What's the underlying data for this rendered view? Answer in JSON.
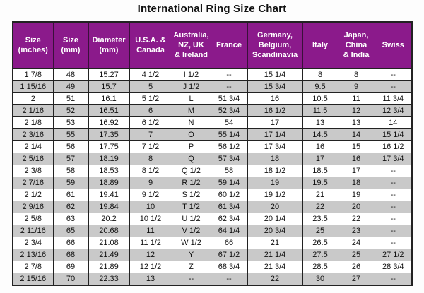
{
  "title": "International Ring Size Chart",
  "colors": {
    "header_bg": "#8B1A8B",
    "header_text": "#FFFFFF",
    "row_even_bg": "#FFFFFF",
    "row_odd_bg": "#C9C9C9",
    "border": "#222222",
    "cell_text": "#111111",
    "title_text": "#111111",
    "page_bg": "#FDFDFD"
  },
  "chart_data": {
    "type": "table",
    "title": "International Ring Size Chart",
    "columns": [
      "Size\n(inches)",
      "Size\n(mm)",
      "Diameter\n(mm)",
      "U.S.A. &\nCanada",
      "Australia,\nNZ, UK\n& Ireland",
      "France",
      "Germany,\nBelgium,\nScandinavia",
      "Italy",
      "Japan,\nChina\n& India",
      "Swiss"
    ],
    "rows": [
      [
        "1 7/8",
        "48",
        "15.27",
        "4 1/2",
        "I 1/2",
        "--",
        "15 1/4",
        "8",
        "8",
        "--"
      ],
      [
        "1 15/16",
        "49",
        "15.7",
        "5",
        "J 1/2",
        "--",
        "15 3/4",
        "9.5",
        "9",
        "--"
      ],
      [
        "2",
        "51",
        "16.1",
        "5 1/2",
        "L",
        "51 3/4",
        "16",
        "10.5",
        "11",
        "11 3/4"
      ],
      [
        "2 1/16",
        "52",
        "16.51",
        "6",
        "M",
        "52 3/4",
        "16 1/2",
        "11.5",
        "12",
        "12 3/4"
      ],
      [
        "2 1/8",
        "53",
        "16.92",
        "6 1/2",
        "N",
        "54",
        "17",
        "13",
        "13",
        "14"
      ],
      [
        "2 3/16",
        "55",
        "17.35",
        "7",
        "O",
        "55 1/4",
        "17 1/4",
        "14.5",
        "14",
        "15 1/4"
      ],
      [
        "2 1/4",
        "56",
        "17.75",
        "7 1/2",
        "P",
        "56 1/2",
        "17 3/4",
        "16",
        "15",
        "16 1/2"
      ],
      [
        "2 5/16",
        "57",
        "18.19",
        "8",
        "Q",
        "57 3/4",
        "18",
        "17",
        "16",
        "17 3/4"
      ],
      [
        "2 3/8",
        "58",
        "18.53",
        "8 1/2",
        "Q 1/2",
        "58",
        "18 1/2",
        "18.5",
        "17",
        "--"
      ],
      [
        "2 7/16",
        "59",
        "18.89",
        "9",
        "R 1/2",
        "59 1/4",
        "19",
        "19.5",
        "18",
        "--"
      ],
      [
        "2 1/2",
        "61",
        "19.41",
        "9 1/2",
        "S 1/2",
        "60 1/2",
        "19 1/2",
        "21",
        "19",
        "--"
      ],
      [
        "2 9/16",
        "62",
        "19.84",
        "10",
        "T 1/2",
        "61 3/4",
        "20",
        "22",
        "20",
        "--"
      ],
      [
        "2 5/8",
        "63",
        "20.2",
        "10 1/2",
        "U 1/2",
        "62 3/4",
        "20 1/4",
        "23.5",
        "22",
        "--"
      ],
      [
        "2 11/16",
        "65",
        "20.68",
        "11",
        "V 1/2",
        "64 1/4",
        "20 3/4",
        "25",
        "23",
        "--"
      ],
      [
        "2 3/4",
        "66",
        "21.08",
        "11 1/2",
        "W 1/2",
        "66",
        "21",
        "26.5",
        "24",
        "--"
      ],
      [
        "2 13/16",
        "68",
        "21.49",
        "12",
        "Y",
        "67 1/2",
        "21 1/4",
        "27.5",
        "25",
        "27 1/2"
      ],
      [
        "2 7/8",
        "69",
        "21.89",
        "12 1/2",
        "Z",
        "68 3/4",
        "21 3/4",
        "28.5",
        "26",
        "28 3/4"
      ],
      [
        "2 15/16",
        "70",
        "22.33",
        "13",
        "--",
        "--",
        "22",
        "30",
        "27",
        "--"
      ]
    ]
  }
}
